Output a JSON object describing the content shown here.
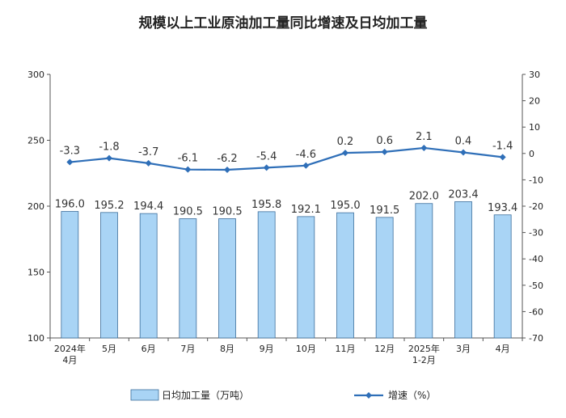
{
  "title": "规模以上工业原油加工量同比增速及日均加工量",
  "chart_data": {
    "type": "bar",
    "categories": [
      [
        "2024年",
        "4月"
      ],
      [
        "5月"
      ],
      [
        "6月"
      ],
      [
        "7月"
      ],
      [
        "8月"
      ],
      [
        "9月"
      ],
      [
        "10月"
      ],
      [
        "11月"
      ],
      [
        "12月"
      ],
      [
        "2025年",
        "1-2月"
      ],
      [
        "3月"
      ],
      [
        "4月"
      ]
    ],
    "series": [
      {
        "name": "日均加工量（万吨）",
        "type": "bar",
        "axis": "left",
        "color": "#a9d4f5",
        "stroke": "#3c6e9c",
        "values": [
          196.0,
          195.2,
          194.4,
          190.5,
          190.5,
          195.8,
          192.1,
          195.0,
          191.5,
          202.0,
          203.4,
          193.4
        ],
        "labels": [
          "196.0",
          "195.2",
          "194.4",
          "190.5",
          "190.5",
          "195.8",
          "192.1",
          "195.0",
          "191.5",
          "202.0",
          "203.4",
          "193.4"
        ]
      },
      {
        "name": "增速（%）",
        "type": "line",
        "axis": "right",
        "color": "#2f6fb8",
        "values": [
          -3.3,
          -1.8,
          -3.7,
          -6.1,
          -6.2,
          -5.4,
          -4.6,
          0.2,
          0.6,
          2.1,
          0.4,
          -1.4
        ],
        "labels": [
          "-3.3",
          "-1.8",
          "-3.7",
          "-6.1",
          "-6.2",
          "-5.4",
          "-4.6",
          "0.2",
          "0.6",
          "2.1",
          "0.4",
          "-1.4"
        ]
      }
    ],
    "left_axis": {
      "ylim": [
        100,
        300
      ],
      "ticks": [
        "100",
        "150",
        "200",
        "250",
        "300"
      ]
    },
    "right_axis": {
      "ylim": [
        -70,
        30
      ],
      "ticks": [
        "30",
        "20",
        "10",
        "0",
        "-10",
        "-20",
        "-30",
        "-40",
        "-50",
        "-60",
        "-70"
      ]
    },
    "legend": {
      "placement": "bottom",
      "items": [
        "日均加工量（万吨）",
        "增速（%）"
      ]
    },
    "grid": false
  }
}
